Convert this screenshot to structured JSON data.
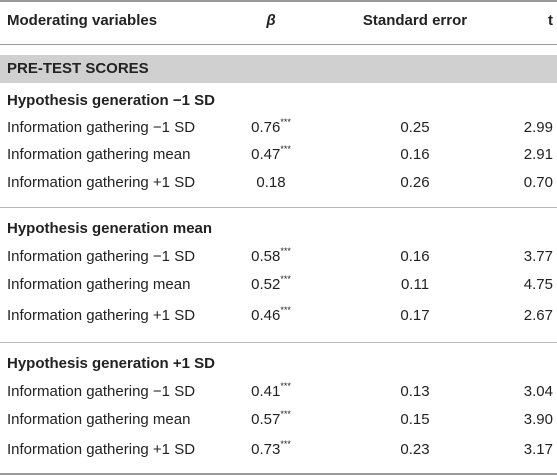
{
  "header": {
    "col0": "Moderating variables",
    "col1": "β",
    "col2": "Standard error",
    "col3": "t"
  },
  "section": "PRE-TEST SCORES",
  "groups": [
    {
      "title": "Hypothesis generation −1 SD",
      "rows": [
        {
          "label": "Information gathering −1 SD",
          "beta": "0.76",
          "sig": "***",
          "se": "0.25",
          "t": "2.99"
        },
        {
          "label": "Information gathering mean",
          "beta": "0.47",
          "sig": "***",
          "se": "0.16",
          "t": "2.91"
        },
        {
          "label": "Information gathering +1 SD",
          "beta": "0.18",
          "sig": "",
          "se": "0.26",
          "t": "0.70"
        }
      ]
    },
    {
      "title": "Hypothesis generation mean",
      "rows": [
        {
          "label": "Information gathering −1 SD",
          "beta": "0.58",
          "sig": "***",
          "se": "0.16",
          "t": "3.77"
        },
        {
          "label": "Information gathering mean",
          "beta": "0.52",
          "sig": "***",
          "se": "0.11",
          "t": "4.75"
        },
        {
          "label": "Information gathering +1 SD",
          "beta": "0.46",
          "sig": "***",
          "se": "0.17",
          "t": "2.67"
        }
      ]
    },
    {
      "title": "Hypothesis generation +1 SD",
      "rows": [
        {
          "label": "Information gathering −1 SD",
          "beta": "0.41",
          "sig": "***",
          "se": "0.13",
          "t": "3.04"
        },
        {
          "label": "Information gathering mean",
          "beta": "0.57",
          "sig": "***",
          "se": "0.15",
          "t": "3.90"
        },
        {
          "label": "Information gathering +1 SD",
          "beta": "0.73",
          "sig": "***",
          "se": "0.23",
          "t": "3.17"
        }
      ]
    }
  ]
}
